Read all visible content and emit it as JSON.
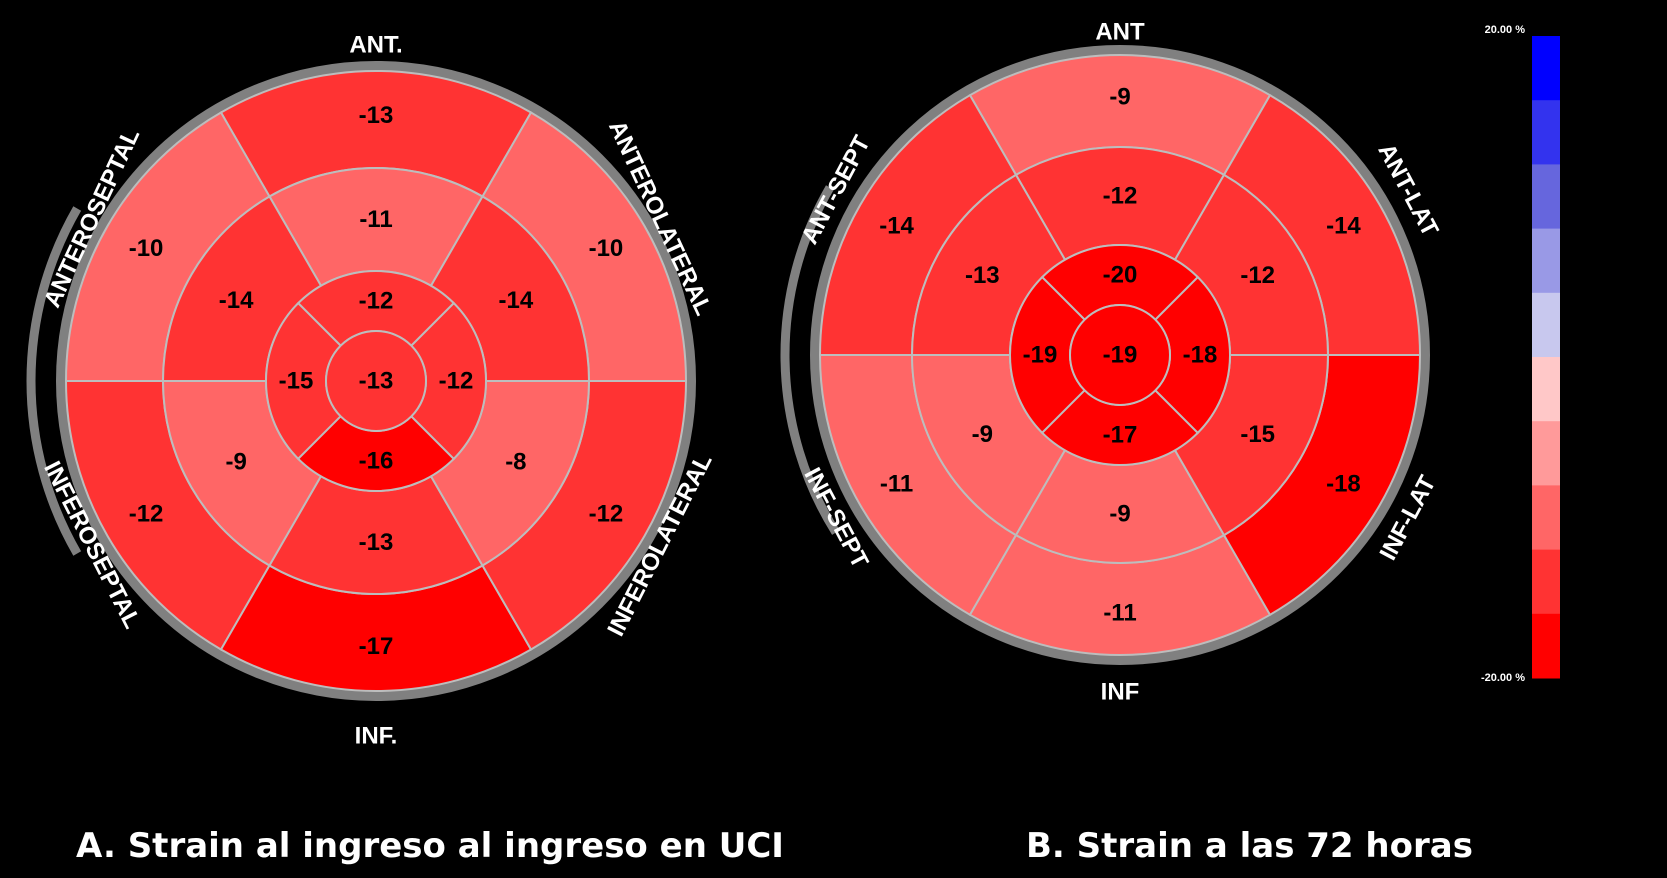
{
  "chart_data": [
    {
      "type": "bullseye",
      "caption": "A. Strain al ingreso al ingreso en UCI",
      "wall_labels": {
        "top": "ANT.",
        "upper_left": "ANTEROSEPTAL",
        "upper_right": "ANTEROLATERAL",
        "lower_left": "INFEROSEPTAL",
        "lower_right": "INFEROLATERAL",
        "bottom": "INF."
      },
      "segments": {
        "basal": {
          "anterior": -13,
          "anterolateral": -10,
          "inferolateral": -12,
          "inferior": -17,
          "inferoseptal": -12,
          "anteroseptal": -10
        },
        "mid": {
          "anterior": -11,
          "anterolateral": -14,
          "inferolateral": -8,
          "inferior": -13,
          "inferoseptal": -9,
          "anteroseptal": -14
        },
        "apical": {
          "anterior": -12,
          "lateral": -12,
          "inferior": -16,
          "septal": -15
        },
        "apex": -13
      }
    },
    {
      "type": "bullseye",
      "caption": "B. Strain a las 72 horas",
      "wall_labels": {
        "top": "ANT",
        "upper_left": "ANT-SEPT",
        "upper_right": "ANT-LAT",
        "lower_left": "INF-SEPT",
        "lower_right": "INF-LAT",
        "bottom": "INF"
      },
      "segments": {
        "basal": {
          "anterior": -9,
          "anterolateral": -14,
          "inferolateral": -18,
          "inferior": -11,
          "inferoseptal": -11,
          "anteroseptal": -14
        },
        "mid": {
          "anterior": -12,
          "anterolateral": -12,
          "inferolateral": -15,
          "inferior": -9,
          "inferoseptal": -9,
          "anteroseptal": -13
        },
        "apical": {
          "anterior": -20,
          "lateral": -18,
          "inferior": -17,
          "septal": -19
        },
        "apex": -19
      }
    }
  ],
  "colorbar": {
    "max_label": "20.00 %",
    "min_label": "-20.00 %",
    "min": -20,
    "max": 20,
    "colors": [
      "#0000ff",
      "#3333ee",
      "#6666dd",
      "#9999e6",
      "#c8c8ee",
      "#ffc8c8",
      "#ff9a9a",
      "#ff6666",
      "#ff3333",
      "#ff0000"
    ]
  },
  "style": {
    "ring_color": "#808080",
    "grid_color": "#bdbdbd",
    "label_color": "#ffffff",
    "value_color": "#000000"
  }
}
